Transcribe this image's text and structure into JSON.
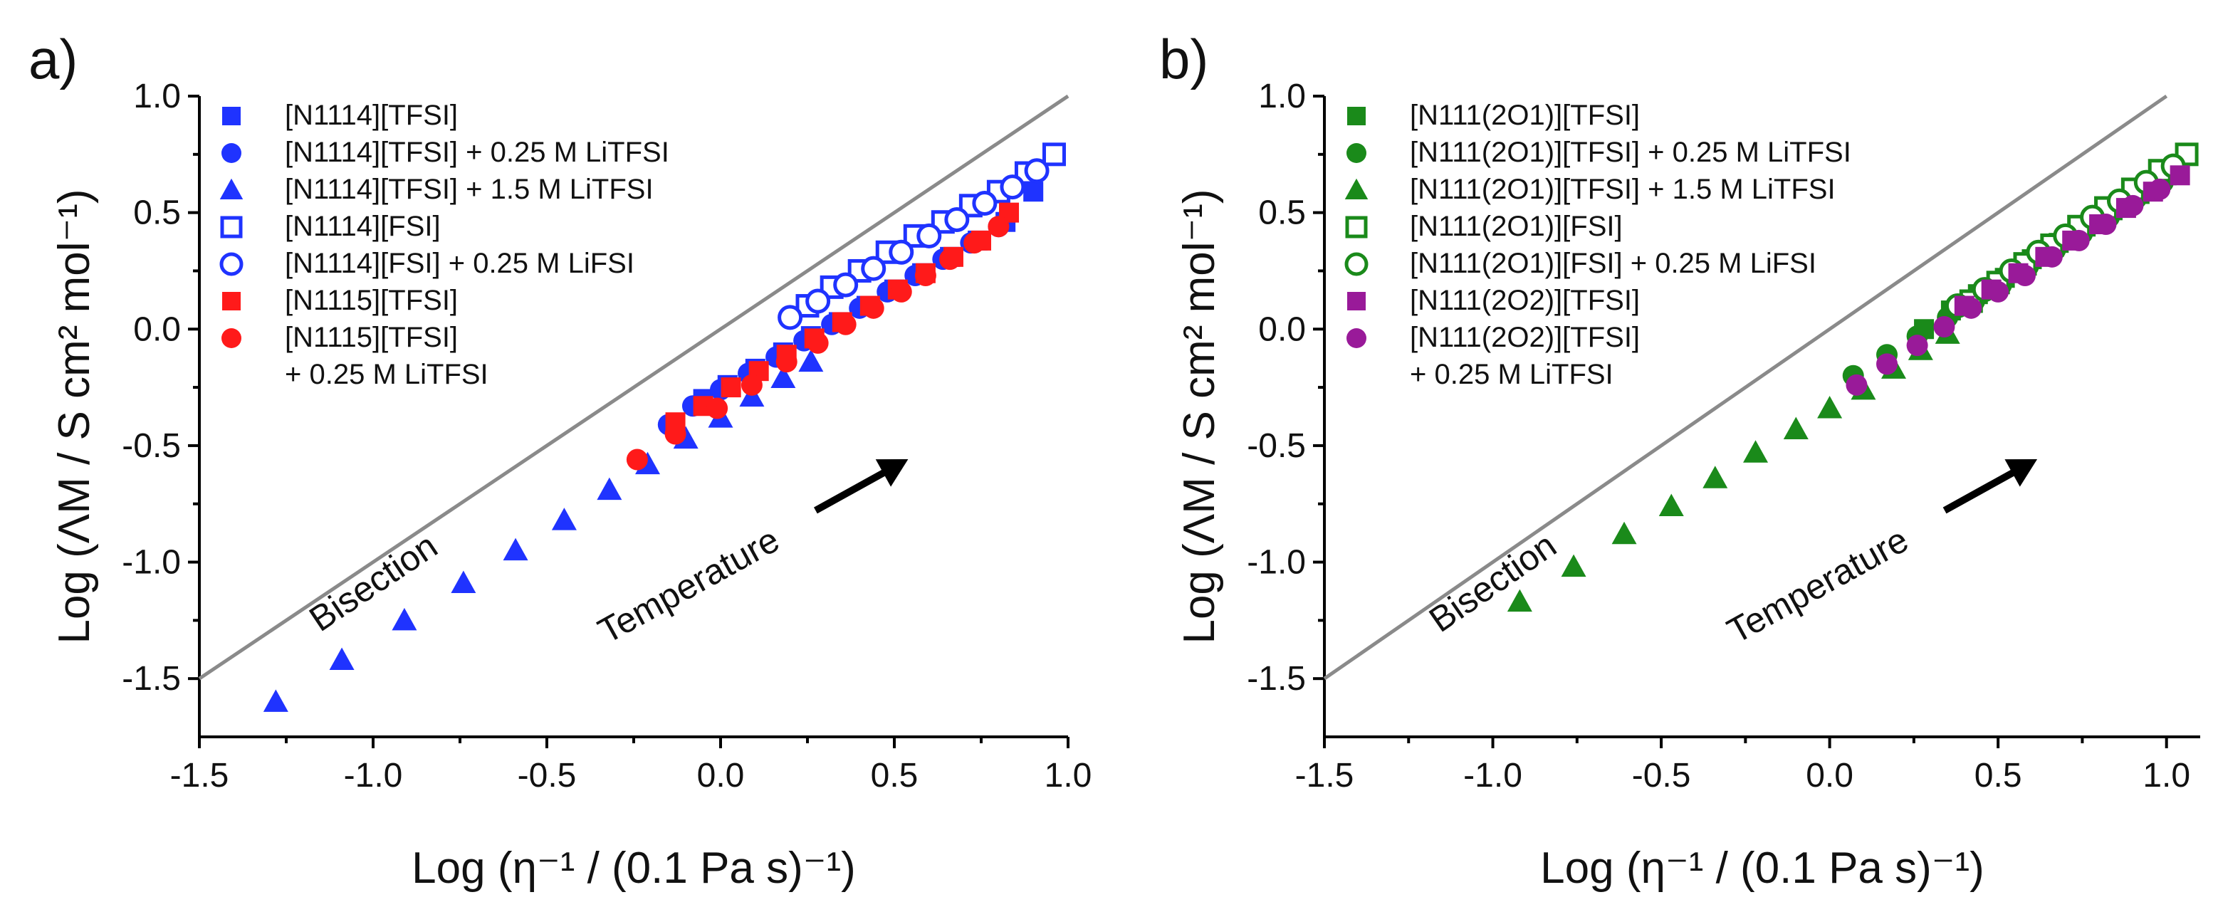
{
  "figure": {
    "colors": {
      "blue": "#1f33ff",
      "red": "#ff1a1a",
      "green": "#1a8a1a",
      "purple": "#991a99",
      "bisection": "#8a8a8a"
    }
  },
  "chart_data": [
    {
      "type": "scatter",
      "panel_label": "a)",
      "xlabel": "Log (η⁻¹ / (0.1 Pa s)⁻¹)",
      "ylabel": "Log (ΛM / S cm² mol⁻¹)",
      "xlim": [
        -1.5,
        1.0
      ],
      "ylim": [
        -1.75,
        1.0
      ],
      "xticks": [
        -1.5,
        -1.0,
        -0.5,
        0.0,
        0.5,
        1.0
      ],
      "xtick_labels": [
        "-1.5",
        "-1.0",
        "-0.5",
        "0.0",
        "0.5",
        "1.0"
      ],
      "yticks": [
        1.0,
        0.5,
        0.0,
        -0.5,
        -1.0,
        -1.5
      ],
      "ytick_labels": [
        "1.0",
        "0.5",
        "0.0",
        "-0.5",
        "-1.0",
        "-1.5"
      ],
      "annotations": {
        "bisection": "Bisection",
        "temperature": "Temperature"
      },
      "legend_position": "top-left",
      "series": [
        {
          "name": "[N1114][TFSI]",
          "line2": "",
          "color": "#1f33ff",
          "marker": "square",
          "filled": true,
          "x": [
            -0.05,
            0.02,
            0.1,
            0.18,
            0.26,
            0.34,
            0.42,
            0.5,
            0.58,
            0.66,
            0.74,
            0.82,
            0.9
          ],
          "y": [
            -0.3,
            -0.24,
            -0.17,
            -0.1,
            -0.03,
            0.03,
            0.1,
            0.17,
            0.24,
            0.31,
            0.38,
            0.46,
            0.59
          ]
        },
        {
          "name": "[N1114][TFSI] + 0.25 M LiTFSI",
          "line2": "",
          "color": "#1f33ff",
          "marker": "circle",
          "filled": true,
          "x": [
            -0.15,
            -0.08,
            0.0,
            0.08,
            0.16,
            0.24,
            0.32,
            0.4,
            0.48,
            0.56,
            0.64,
            0.72,
            0.8
          ],
          "y": [
            -0.41,
            -0.33,
            -0.26,
            -0.19,
            -0.12,
            -0.05,
            0.02,
            0.09,
            0.16,
            0.23,
            0.3,
            0.37,
            0.44
          ]
        },
        {
          "name": "[N1114][TFSI] + 1.5 M LiTFSI",
          "line2": "",
          "color": "#1f33ff",
          "marker": "triangle",
          "filled": true,
          "x": [
            -1.28,
            -1.09,
            -0.91,
            -0.74,
            -0.59,
            -0.45,
            -0.32,
            -0.21,
            -0.1,
            0.0,
            0.09,
            0.18,
            0.26
          ],
          "y": [
            -1.6,
            -1.42,
            -1.25,
            -1.09,
            -0.95,
            -0.82,
            -0.69,
            -0.58,
            -0.47,
            -0.38,
            -0.29,
            -0.21,
            -0.14
          ]
        },
        {
          "name": "[N1114][FSI]",
          "line2": "",
          "color": "#1f33ff",
          "marker": "square",
          "filled": false,
          "x": [
            0.25,
            0.32,
            0.4,
            0.48,
            0.56,
            0.64,
            0.72,
            0.8,
            0.88,
            0.96
          ],
          "y": [
            0.1,
            0.18,
            0.25,
            0.33,
            0.4,
            0.46,
            0.53,
            0.59,
            0.67,
            0.75
          ]
        },
        {
          "name": "[N1114][FSI] + 0.25 M LiFSI",
          "line2": "",
          "color": "#1f33ff",
          "marker": "circle",
          "filled": false,
          "x": [
            0.2,
            0.28,
            0.36,
            0.44,
            0.52,
            0.6,
            0.68,
            0.76,
            0.84,
            0.91
          ],
          "y": [
            0.05,
            0.12,
            0.19,
            0.26,
            0.33,
            0.4,
            0.47,
            0.54,
            0.61,
            0.68
          ]
        },
        {
          "name": "[N1115][TFSI]",
          "line2": "",
          "color": "#ff1a1a",
          "marker": "square",
          "filled": true,
          "x": [
            -0.13,
            -0.05,
            0.03,
            0.11,
            0.19,
            0.27,
            0.35,
            0.43,
            0.51,
            0.59,
            0.67,
            0.75,
            0.83
          ],
          "y": [
            -0.4,
            -0.33,
            -0.25,
            -0.18,
            -0.11,
            -0.04,
            0.03,
            0.1,
            0.17,
            0.24,
            0.31,
            0.38,
            0.5
          ]
        },
        {
          "name": "[N1115][TFSI]",
          "line2": "+ 0.25 M LiTFSI",
          "color": "#ff1a1a",
          "marker": "circle",
          "filled": true,
          "x": [
            -0.24,
            -0.13,
            -0.01,
            0.09,
            0.19,
            0.28,
            0.36,
            0.44,
            0.52,
            0.59,
            0.66,
            0.73,
            0.8
          ],
          "y": [
            -0.56,
            -0.45,
            -0.34,
            -0.24,
            -0.14,
            -0.06,
            0.02,
            0.09,
            0.16,
            0.23,
            0.3,
            0.37,
            0.44
          ]
        }
      ]
    },
    {
      "type": "scatter",
      "panel_label": "b)",
      "xlabel": "Log (η⁻¹ / (0.1 Pa s)⁻¹)",
      "ylabel": "Log (ΛM / S cm² mol⁻¹)",
      "xlim": [
        -1.5,
        1.1
      ],
      "ylim": [
        -1.75,
        1.0
      ],
      "xticks": [
        -1.5,
        -1.0,
        -0.5,
        0.0,
        0.5,
        1.0
      ],
      "xtick_labels": [
        "-1.5",
        "-1.0",
        "-0.5",
        "0.0",
        "0.5",
        "1.0"
      ],
      "yticks": [
        1.0,
        0.5,
        0.0,
        -0.5,
        -1.0,
        -1.5
      ],
      "ytick_labels": [
        "1.0",
        "0.5",
        "0.0",
        "-0.5",
        "-1.0",
        "-1.5"
      ],
      "annotations": {
        "bisection": "Bisection",
        "temperature": "Temperature"
      },
      "legend_position": "top-left",
      "series": [
        {
          "name": "[N111(2O1)][TFSI]",
          "line2": "",
          "color": "#1a8a1a",
          "marker": "square",
          "filled": true,
          "x": [
            0.28,
            0.36,
            0.44,
            0.52,
            0.6,
            0.68,
            0.76,
            0.84,
            0.92,
            1.0
          ],
          "y": [
            0.0,
            0.08,
            0.15,
            0.22,
            0.3,
            0.37,
            0.44,
            0.51,
            0.58,
            0.66
          ]
        },
        {
          "name": "[N111(2O1)][TFSI] + 0.25 M LiTFSI",
          "line2": "",
          "color": "#1a8a1a",
          "marker": "circle",
          "filled": true,
          "x": [
            0.07,
            0.17,
            0.26,
            0.35,
            0.43,
            0.51,
            0.59,
            0.67,
            0.75,
            0.83,
            0.91,
            0.99
          ],
          "y": [
            -0.2,
            -0.11,
            -0.03,
            0.05,
            0.12,
            0.19,
            0.27,
            0.34,
            0.41,
            0.48,
            0.56,
            0.63
          ]
        },
        {
          "name": "[N111(2O1)][TFSI] + 1.5 M LiTFSI",
          "line2": "",
          "color": "#1a8a1a",
          "marker": "triangle",
          "filled": true,
          "x": [
            -0.92,
            -0.76,
            -0.61,
            -0.47,
            -0.34,
            -0.22,
            -0.1,
            0.0,
            0.1,
            0.19,
            0.27,
            0.35
          ],
          "y": [
            -1.17,
            -1.02,
            -0.88,
            -0.76,
            -0.64,
            -0.53,
            -0.43,
            -0.34,
            -0.26,
            -0.17,
            -0.09,
            -0.02
          ]
        },
        {
          "name": "[N111(2O1)][FSI]",
          "line2": "",
          "color": "#1a8a1a",
          "marker": "square",
          "filled": false,
          "x": [
            0.42,
            0.5,
            0.58,
            0.66,
            0.74,
            0.82,
            0.9,
            0.98,
            1.06
          ],
          "y": [
            0.12,
            0.2,
            0.28,
            0.36,
            0.44,
            0.52,
            0.6,
            0.68,
            0.75
          ]
        },
        {
          "name": "[N111(2O1)][FSI] + 0.25 M LiFSI",
          "line2": "",
          "color": "#1a8a1a",
          "marker": "circle",
          "filled": false,
          "x": [
            0.38,
            0.46,
            0.54,
            0.62,
            0.7,
            0.78,
            0.86,
            0.94,
            1.02
          ],
          "y": [
            0.1,
            0.17,
            0.25,
            0.33,
            0.4,
            0.48,
            0.55,
            0.63,
            0.7
          ]
        },
        {
          "name": "[N111(2O2)][TFSI]",
          "line2": "",
          "color": "#991a99",
          "marker": "square",
          "filled": true,
          "x": [
            0.4,
            0.48,
            0.56,
            0.64,
            0.72,
            0.8,
            0.88,
            0.96,
            1.04
          ],
          "y": [
            0.1,
            0.17,
            0.24,
            0.31,
            0.38,
            0.45,
            0.52,
            0.59,
            0.66
          ]
        },
        {
          "name": "[N111(2O2)][TFSI]",
          "line2": "+ 0.25 M LiTFSI",
          "color": "#991a99",
          "marker": "circle",
          "filled": true,
          "x": [
            0.08,
            0.17,
            0.26,
            0.34,
            0.42,
            0.5,
            0.58,
            0.66,
            0.74,
            0.82,
            0.9,
            0.98
          ],
          "y": [
            -0.24,
            -0.15,
            -0.07,
            0.01,
            0.09,
            0.16,
            0.23,
            0.31,
            0.38,
            0.45,
            0.53,
            0.6
          ]
        }
      ]
    }
  ]
}
